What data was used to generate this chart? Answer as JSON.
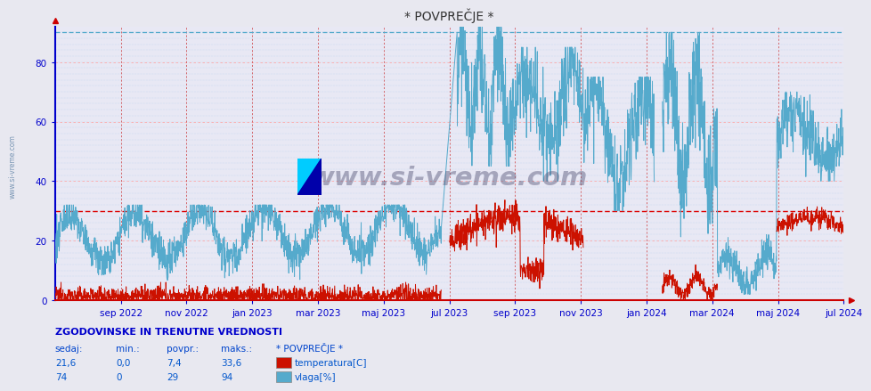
{
  "title": "* POVPREČJE *",
  "bg_color": "#e8e8f0",
  "plot_bg_color": "#e8e8f4",
  "grid_color_major": "#ffaaaa",
  "grid_color_minor": "#aaccee",
  "temp_color": "#cc1100",
  "vlaga_color": "#55aacc",
  "vline_color": "#cc3333",
  "hline_red_value": 30,
  "hline_cyan_value": 90,
  "tick_color": "#0000cc",
  "title_color": "#333333",
  "watermark": "www.si-vreme.com",
  "legend_title": "* POVPREČJE *",
  "y_ticks": [
    0,
    20,
    40,
    60,
    80
  ],
  "y_max": 90,
  "x_tick_labels": [
    "sep 2022",
    "nov 2022",
    "jan 2023",
    "mar 2023",
    "maj 2023",
    "jul 2023",
    "sep 2023",
    "nov 2023",
    "jan 2024",
    "mar 2024",
    "maj 2024",
    "jul 2024"
  ],
  "x_tick_positions": [
    0.0833,
    0.1667,
    0.25,
    0.3333,
    0.4167,
    0.5,
    0.5833,
    0.6667,
    0.75,
    0.8333,
    0.9167,
    1.0
  ],
  "vertical_lines": [
    0.0,
    0.0833,
    0.1667,
    0.25,
    0.3333,
    0.4167,
    0.5,
    0.5833,
    0.6667,
    0.75,
    0.8333,
    0.9167,
    1.0
  ],
  "table_title": "ZGODOVINSKE IN TRENUTNE VREDNOSTI",
  "table_headers": [
    "sedaj:",
    "min.:",
    "povpr.:",
    "maks.:",
    "* POVPREČJE *"
  ],
  "table_rows": [
    [
      "21,6",
      "0,0",
      "7,4",
      "33,6",
      "temperatura[C]",
      "#cc1100"
    ],
    [
      "74",
      "0",
      "29",
      "94",
      "vlaga[%]",
      "#55aacc"
    ]
  ]
}
